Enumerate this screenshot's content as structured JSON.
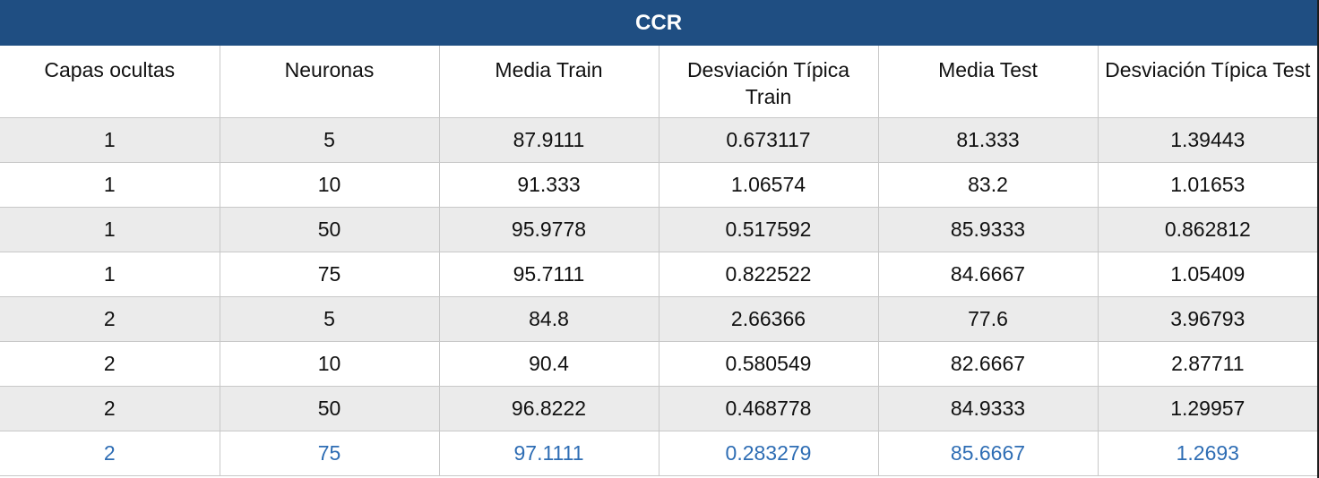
{
  "table": {
    "title": "CCR",
    "headers": [
      "Capas ocultas",
      "Neuronas",
      "Media Train",
      "Desviación Típica Train",
      "Media Test",
      "Desviación Típica Test"
    ],
    "rows": [
      [
        "1",
        "5",
        "87.9111",
        "0.673117",
        "81.333",
        "1.39443"
      ],
      [
        "1",
        "10",
        "91.333",
        "1.06574",
        "83.2",
        "1.01653"
      ],
      [
        "1",
        "50",
        "95.9778",
        "0.517592",
        "85.9333",
        "0.862812"
      ],
      [
        "1",
        "75",
        "95.7111",
        "0.822522",
        "84.6667",
        "1.05409"
      ],
      [
        "2",
        "5",
        "84.8",
        "2.66366",
        "77.6",
        "3.96793"
      ],
      [
        "2",
        "10",
        "90.4",
        "0.580549",
        "82.6667",
        "2.87711"
      ],
      [
        "2",
        "50",
        "96.8222",
        "0.468778",
        "84.9333",
        "1.29957"
      ],
      [
        "2",
        "75",
        "97.1111",
        "0.283279",
        "85.6667",
        "1.2693"
      ]
    ],
    "highlight_color": "#2e6db4",
    "header_color": "#1f4e82"
  }
}
